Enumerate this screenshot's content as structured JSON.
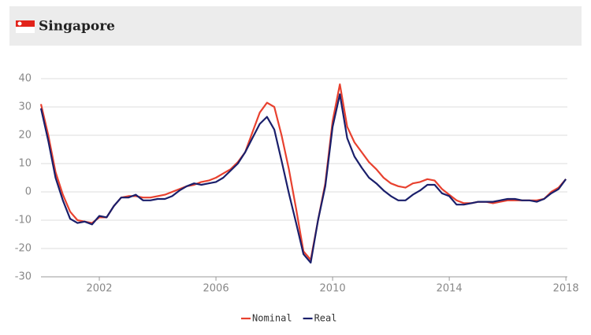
{
  "chart_data": {
    "type": "line",
    "title": "Singapore",
    "x": [
      2000,
      2000.25,
      2000.5,
      2000.75,
      2001,
      2001.25,
      2001.5,
      2001.75,
      2002,
      2002.25,
      2002.5,
      2002.75,
      2003,
      2003.25,
      2003.5,
      2003.75,
      2004,
      2004.25,
      2004.5,
      2004.75,
      2005,
      2005.25,
      2005.5,
      2005.75,
      2006,
      2006.25,
      2006.5,
      2006.75,
      2007,
      2007.25,
      2007.5,
      2007.75,
      2008,
      2008.25,
      2008.5,
      2008.75,
      2009,
      2009.25,
      2009.5,
      2009.75,
      2010,
      2010.25,
      2010.5,
      2010.75,
      2011,
      2011.25,
      2011.5,
      2011.75,
      2012,
      2012.25,
      2012.5,
      2012.75,
      2013,
      2013.25,
      2013.5,
      2013.75,
      2014,
      2014.25,
      2014.5,
      2014.75,
      2015,
      2015.25,
      2015.5,
      2015.75,
      2016,
      2016.25,
      2016.5,
      2016.75,
      2017,
      2017.25,
      2017.5,
      2017.75,
      2018
    ],
    "series": [
      {
        "name": "Nominal",
        "color": "#e8412f",
        "values": [
          31,
          20,
          7,
          -1,
          -7,
          -10,
          -10.5,
          -11,
          -9,
          -9,
          -5,
          -2,
          -1.5,
          -1.5,
          -2,
          -2,
          -1.5,
          -1,
          0,
          1,
          2,
          2.5,
          3.5,
          4,
          5,
          6.5,
          8,
          10.5,
          14,
          21,
          28,
          31.5,
          30,
          20,
          8,
          -6,
          -21,
          -24,
          -10,
          3,
          25,
          38,
          23,
          17.5,
          14,
          10.5,
          8,
          5,
          3,
          2,
          1.5,
          3,
          3.5,
          4.5,
          4,
          1,
          -1,
          -3,
          -4,
          -4,
          -3.5,
          -3.5,
          -4,
          -3.5,
          -3,
          -3,
          -3,
          -3,
          -3,
          -2.5,
          0,
          1.5,
          4.5
        ]
      },
      {
        "name": "Real",
        "color": "#1a1f6b",
        "values": [
          29.5,
          18,
          5,
          -3,
          -9.5,
          -11,
          -10.5,
          -11.5,
          -8.5,
          -9,
          -5,
          -2,
          -2,
          -1,
          -3,
          -3,
          -2.5,
          -2.5,
          -1.5,
          0.5,
          2,
          3,
          2.5,
          3,
          3.5,
          5,
          7.5,
          10,
          14,
          19,
          24,
          26.5,
          22,
          11,
          -0.5,
          -11,
          -22,
          -25,
          -10,
          2,
          23,
          34.5,
          19,
          12.5,
          8.5,
          5,
          3,
          0.5,
          -1.5,
          -3,
          -3,
          -1,
          0.5,
          2.5,
          2.5,
          -0.5,
          -1.5,
          -4.5,
          -4.5,
          -4,
          -3.5,
          -3.5,
          -3.5,
          -3,
          -2.5,
          -2.5,
          -3,
          -3,
          -3.5,
          -2.5,
          -0.5,
          1,
          4.5
        ]
      }
    ],
    "xlim": [
      2000,
      2018.05
    ],
    "xticks": [
      2002,
      2006,
      2010,
      2014,
      2018
    ],
    "ylim": [
      -30,
      40
    ],
    "yticks": [
      -30,
      -20,
      -10,
      0,
      10,
      20,
      30,
      40
    ],
    "grid": true
  }
}
